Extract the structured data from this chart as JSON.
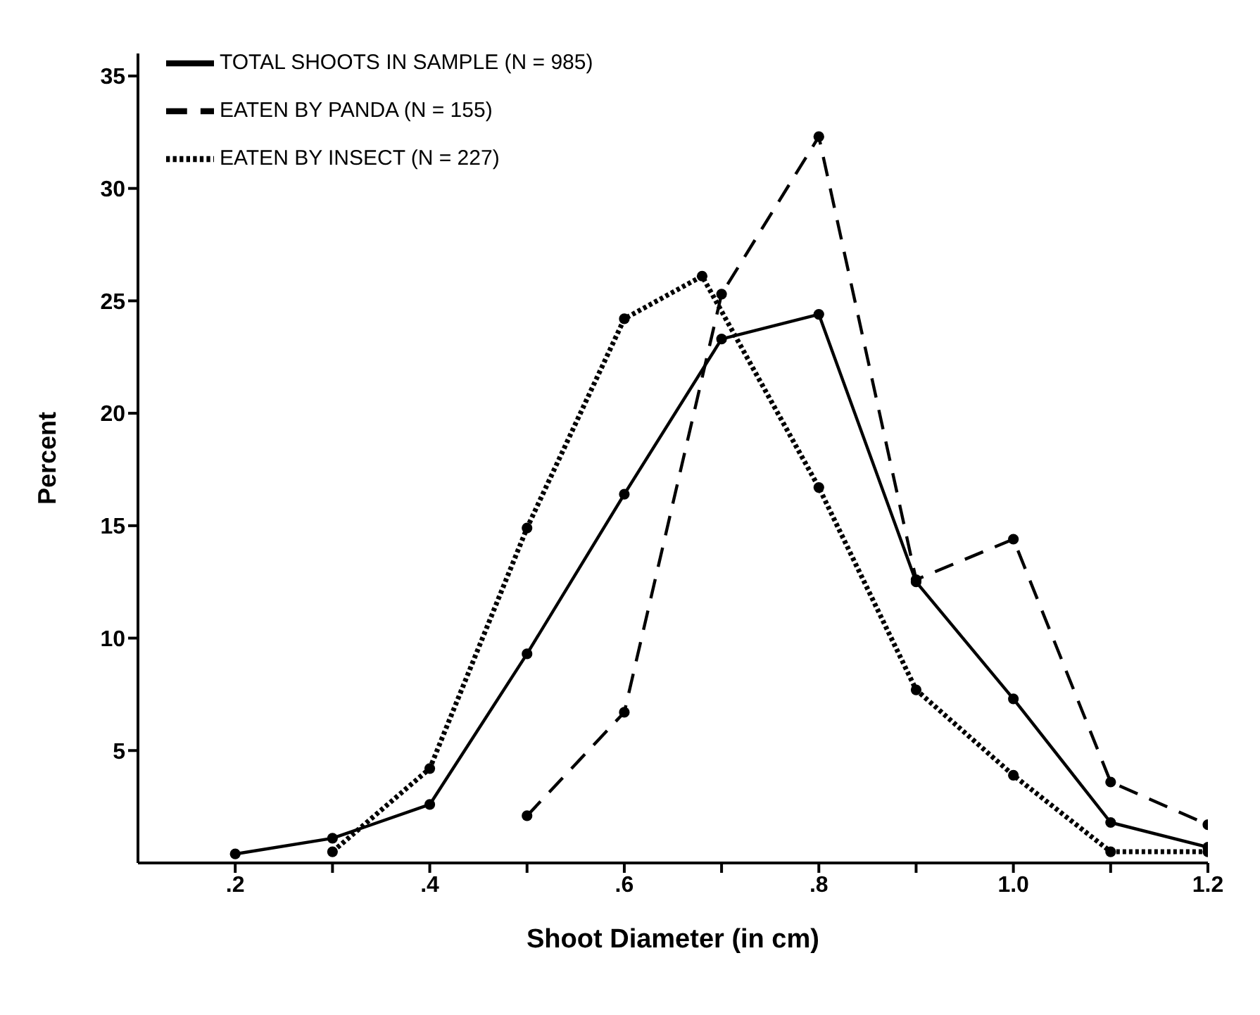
{
  "chart_data": {
    "type": "line",
    "xlabel": "Shoot Diameter (in cm)",
    "ylabel": "Percent",
    "x": [
      0.2,
      0.3,
      0.4,
      0.5,
      0.6,
      0.7,
      0.8,
      0.9,
      1.0,
      1.1,
      1.2
    ],
    "series": [
      {
        "name": "TOTAL SHOOTS IN SAMPLE (N = 985)",
        "color": "#000000",
        "line_style": "solid",
        "values": [
          0.4,
          1.1,
          2.6,
          9.3,
          16.4,
          23.3,
          24.4,
          12.5,
          7.3,
          1.8,
          0.7
        ]
      },
      {
        "name": "EATEN BY PANDA (N = 155)",
        "color": "#000000",
        "line_style": "dashed",
        "x": [
          0.5,
          0.6,
          0.7,
          0.8,
          0.9,
          1.0,
          1.1,
          1.2
        ],
        "values": [
          2.1,
          6.7,
          25.3,
          32.3,
          12.6,
          14.4,
          3.6,
          1.7
        ]
      },
      {
        "name": "EATEN BY INSECT (N = 227)",
        "color": "#000000",
        "line_style": "dotted",
        "x": [
          0.3,
          0.4,
          0.5,
          0.6,
          0.68,
          0.8,
          0.9,
          1.0,
          1.1,
          1.2
        ],
        "values": [
          0.5,
          4.2,
          14.9,
          24.2,
          26.1,
          16.7,
          7.7,
          3.9,
          0.5,
          0.5
        ]
      }
    ],
    "marker": "circle",
    "legend": "top left",
    "grid": false,
    "xlim": [
      0.1,
      1.2
    ],
    "xticks": [
      {
        "value": 0.2,
        "label": ".2"
      },
      {
        "value": 0.3,
        "label": null
      },
      {
        "value": 0.4,
        "label": ".4"
      },
      {
        "value": 0.5,
        "label": null
      },
      {
        "value": 0.6,
        "label": ".6"
      },
      {
        "value": 0.7,
        "label": null
      },
      {
        "value": 0.8,
        "label": ".8"
      },
      {
        "value": 0.9,
        "label": null
      },
      {
        "value": 1.0,
        "label": "1.0"
      },
      {
        "value": 1.1,
        "label": null
      },
      {
        "value": 1.2,
        "label": "1.2"
      }
    ],
    "ylim": [
      0,
      36
    ],
    "yticks": [
      5,
      10,
      15,
      20,
      25,
      30,
      35
    ]
  }
}
